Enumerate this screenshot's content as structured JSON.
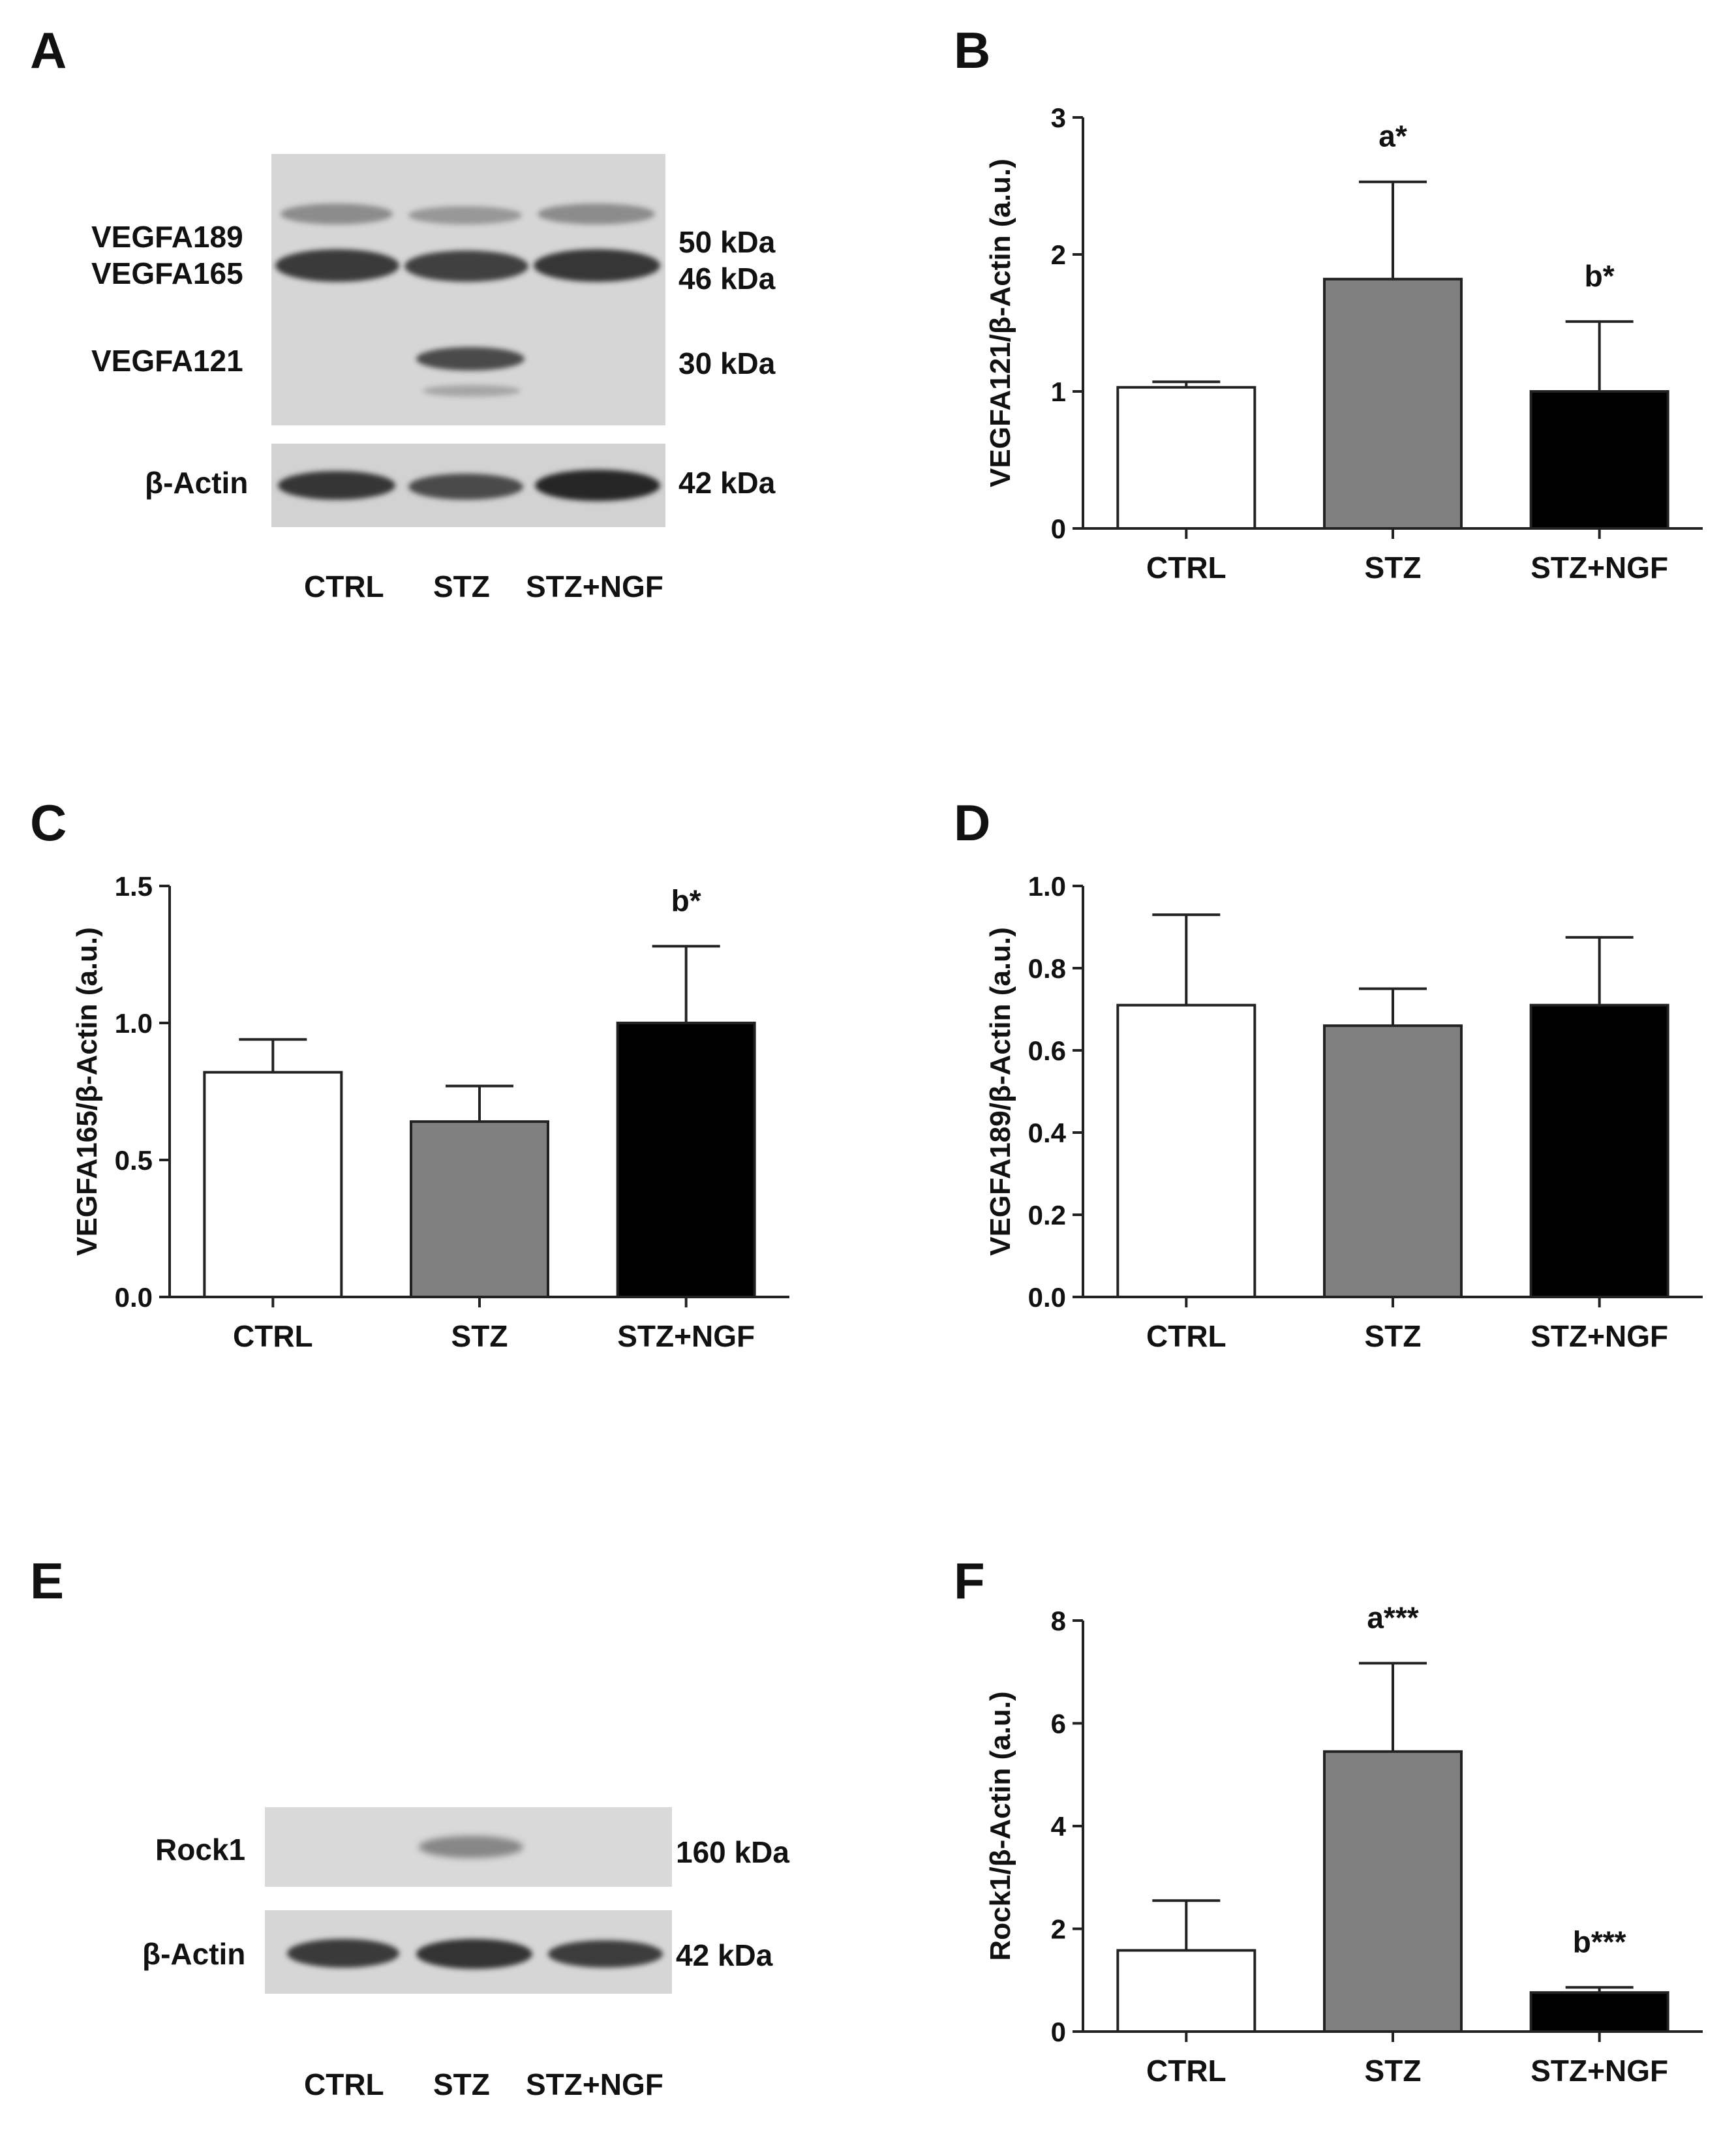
{
  "panels": [
    "A",
    "B",
    "C",
    "D",
    "E",
    "F"
  ],
  "blot_a": {
    "left_labels": [
      "VEGFA189",
      "VEGFA165",
      "VEGFA121",
      "β-Actin"
    ],
    "right_labels": [
      "50 kDa",
      "46 kDa",
      "30 kDa",
      "42 kDa"
    ],
    "lanes": [
      "CTRL",
      "STZ",
      "STZ+NGF"
    ]
  },
  "blot_e": {
    "left_labels": [
      "Rock1",
      "β-Actin"
    ],
    "right_labels": [
      "160 kDa",
      "42 kDa"
    ],
    "lanes": [
      "CTRL",
      "STZ",
      "STZ+NGF"
    ]
  },
  "colors": {
    "ctrl": "#ffffff",
    "stz": "#808080",
    "stz_ngf": "#000000",
    "axis": "#222222"
  },
  "chart_data": [
    {
      "panel": "B",
      "type": "bar",
      "categories": [
        "CTRL",
        "STZ",
        "STZ+NGF"
      ],
      "values": [
        1.03,
        1.82,
        1.0
      ],
      "errors": [
        0.04,
        0.71,
        0.51
      ],
      "annotations": [
        "",
        "a*",
        "b*"
      ],
      "ylabel": "VEGFA121/β-Actin (a.u.)",
      "ylim": [
        0,
        3
      ],
      "yticks": [
        0,
        1,
        2,
        3
      ],
      "ytick_labels": [
        "0",
        "1",
        "2",
        "3"
      ]
    },
    {
      "panel": "C",
      "type": "bar",
      "categories": [
        "CTRL",
        "STZ",
        "STZ+NGF"
      ],
      "values": [
        0.82,
        0.64,
        1.0
      ],
      "errors": [
        0.12,
        0.13,
        0.28
      ],
      "annotations": [
        "",
        "",
        "b*"
      ],
      "ylabel": "VEGFA165/β-Actin (a.u.)",
      "ylim": [
        0,
        1.5
      ],
      "yticks": [
        0,
        0.5,
        1,
        1.5
      ],
      "ytick_labels": [
        "0.0",
        "0.5",
        "1.0",
        "1.5"
      ]
    },
    {
      "panel": "D",
      "type": "bar",
      "categories": [
        "CTRL",
        "STZ",
        "STZ+NGF"
      ],
      "values": [
        0.71,
        0.66,
        0.71
      ],
      "errors": [
        0.22,
        0.09,
        0.165
      ],
      "annotations": [
        "",
        "",
        ""
      ],
      "ylabel": "VEGFA189/β-Actin (a.u.)",
      "ylim": [
        0,
        1.0
      ],
      "yticks": [
        0,
        0.2,
        0.4,
        0.6,
        0.8,
        1.0
      ],
      "ytick_labels": [
        "0.0",
        "0.2",
        "0.4",
        "0.6",
        "0.8",
        "1.0"
      ]
    },
    {
      "panel": "F",
      "type": "bar",
      "categories": [
        "CTRL",
        "STZ",
        "STZ+NGF"
      ],
      "values": [
        1.58,
        5.45,
        0.76
      ],
      "errors": [
        0.97,
        1.72,
        0.1
      ],
      "annotations": [
        "",
        "a***",
        "b***"
      ],
      "ylabel": "Rock1/β-Actin (a.u.)",
      "ylim": [
        0,
        8
      ],
      "yticks": [
        0,
        2,
        4,
        6,
        8
      ],
      "ytick_labels": [
        "0",
        "2",
        "4",
        "6",
        "8"
      ]
    }
  ]
}
